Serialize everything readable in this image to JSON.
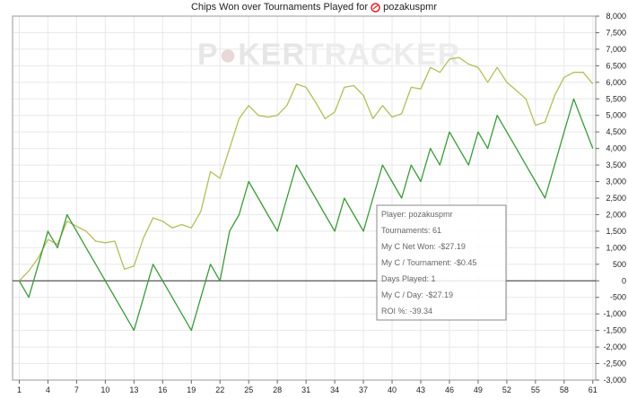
{
  "chart_data": {
    "type": "line",
    "title_prefix": "Chips Won over Tournaments Played for",
    "player_name": "pozakuspmr",
    "watermark": {
      "part1": "P",
      "part2": "KER",
      "part3": "TRACKER"
    },
    "x": [
      1,
      2,
      3,
      4,
      5,
      6,
      7,
      8,
      9,
      10,
      11,
      12,
      13,
      14,
      15,
      16,
      17,
      18,
      19,
      20,
      21,
      22,
      23,
      24,
      25,
      26,
      27,
      28,
      29,
      30,
      31,
      32,
      33,
      34,
      35,
      36,
      37,
      38,
      39,
      40,
      41,
      42,
      43,
      44,
      45,
      46,
      47,
      48,
      49,
      50,
      51,
      52,
      53,
      54,
      55,
      56,
      57,
      58,
      59,
      60,
      61
    ],
    "x_ticks": [
      1,
      4,
      7,
      10,
      13,
      16,
      19,
      22,
      25,
      28,
      31,
      34,
      37,
      40,
      43,
      46,
      49,
      52,
      55,
      58,
      61
    ],
    "ylim": [
      -3000,
      8000
    ],
    "y_ticks": [
      -3000,
      -2500,
      -2000,
      -1500,
      -1000,
      -500,
      0,
      500,
      1000,
      1500,
      2000,
      2500,
      3000,
      3500,
      4000,
      4500,
      5000,
      5500,
      6000,
      6500,
      7000,
      7500,
      8000
    ],
    "y_tick_labels": [
      "-3,000",
      "-2,500",
      "-2,000",
      "-1,500",
      "-1,000",
      "-500",
      "0",
      "500",
      "1,000",
      "1,500",
      "2,000",
      "2,500",
      "3,000",
      "3,500",
      "4,000",
      "4,500",
      "5,000",
      "5,500",
      "6,000",
      "6,500",
      "7,000",
      "7,500",
      "8,000"
    ],
    "grid": true,
    "series": [
      {
        "color": "#b5bd5a",
        "values": [
          0,
          300,
          700,
          1250,
          1100,
          1800,
          1650,
          1500,
          1200,
          1150,
          1200,
          350,
          450,
          1300,
          1900,
          1800,
          1600,
          1700,
          1600,
          2100,
          3300,
          3100,
          4000,
          4900,
          5300,
          5000,
          4950,
          5000,
          5300,
          5950,
          5850,
          5400,
          4900,
          5100,
          5850,
          5900,
          5600,
          4900,
          5300,
          4950,
          5050,
          5850,
          5800,
          6450,
          6300,
          6700,
          6750,
          6550,
          6450,
          6000,
          6450,
          6000,
          5750,
          5500,
          4700,
          4800,
          5600,
          6150,
          6300,
          6300,
          5950
        ]
      },
      {
        "color": "#3a9a3a",
        "values": [
          0,
          -500,
          500,
          1500,
          1000,
          2000,
          1500,
          1000,
          500,
          0,
          -500,
          -1000,
          -1500,
          -500,
          500,
          0,
          -500,
          -1000,
          -1500,
          -500,
          500,
          0,
          1500,
          2000,
          3000,
          2500,
          2000,
          1500,
          2500,
          3500,
          3000,
          2500,
          2000,
          1500,
          2500,
          2000,
          1500,
          2500,
          3500,
          3000,
          2500,
          3500,
          3000,
          4000,
          3500,
          4500,
          4000,
          3500,
          4500,
          4000,
          5000,
          4500,
          4000,
          3500,
          3000,
          2500,
          3500,
          4500,
          5500,
          4750,
          4000
        ]
      }
    ],
    "tooltip": [
      "Player: pozakuspmr",
      "Tournaments: 61",
      "My C Net Won: -$27.19",
      "My C / Tournament: -$0.45",
      "Days Played: 1",
      "My C / Day: -$27.19",
      "ROI %: -39.34"
    ]
  }
}
